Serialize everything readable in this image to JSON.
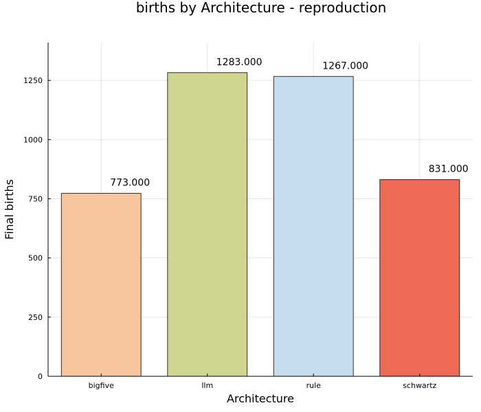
{
  "chart_data": {
    "type": "bar",
    "title": "births by Architecture - reproduction",
    "xlabel": "Architecture",
    "ylabel": "Final births",
    "categories": [
      "bigfive",
      "llm",
      "rule",
      "schwartz"
    ],
    "values": [
      773,
      1283,
      1267,
      831
    ],
    "value_labels": [
      "773.000",
      "1283.000",
      "1267.000",
      "831.000"
    ],
    "colors": [
      "#f5c6a0",
      "#cfd590",
      "#c6dbec",
      "#ef6a56"
    ],
    "ylim": [
      0,
      1410
    ],
    "yticks": [
      0,
      250,
      500,
      750,
      1000,
      1250
    ],
    "ytick_labels": [
      "0",
      "250",
      "500",
      "750",
      "1000",
      "1250"
    ],
    "grid": true,
    "legend": false
  }
}
